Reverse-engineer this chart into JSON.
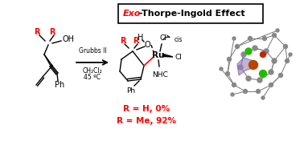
{
  "title_italic": "Exo",
  "title_rest": "-Thorpe-Ingold Effect",
  "red_color": "#ff0000",
  "black_color": "#000000",
  "bg_color": "#ffffff",
  "result1": "R = H, 0%",
  "result2": "R = Me, 92%",
  "conditions": [
    "Grubbs II",
    "CH₂Cl₂",
    "45 ºC"
  ]
}
